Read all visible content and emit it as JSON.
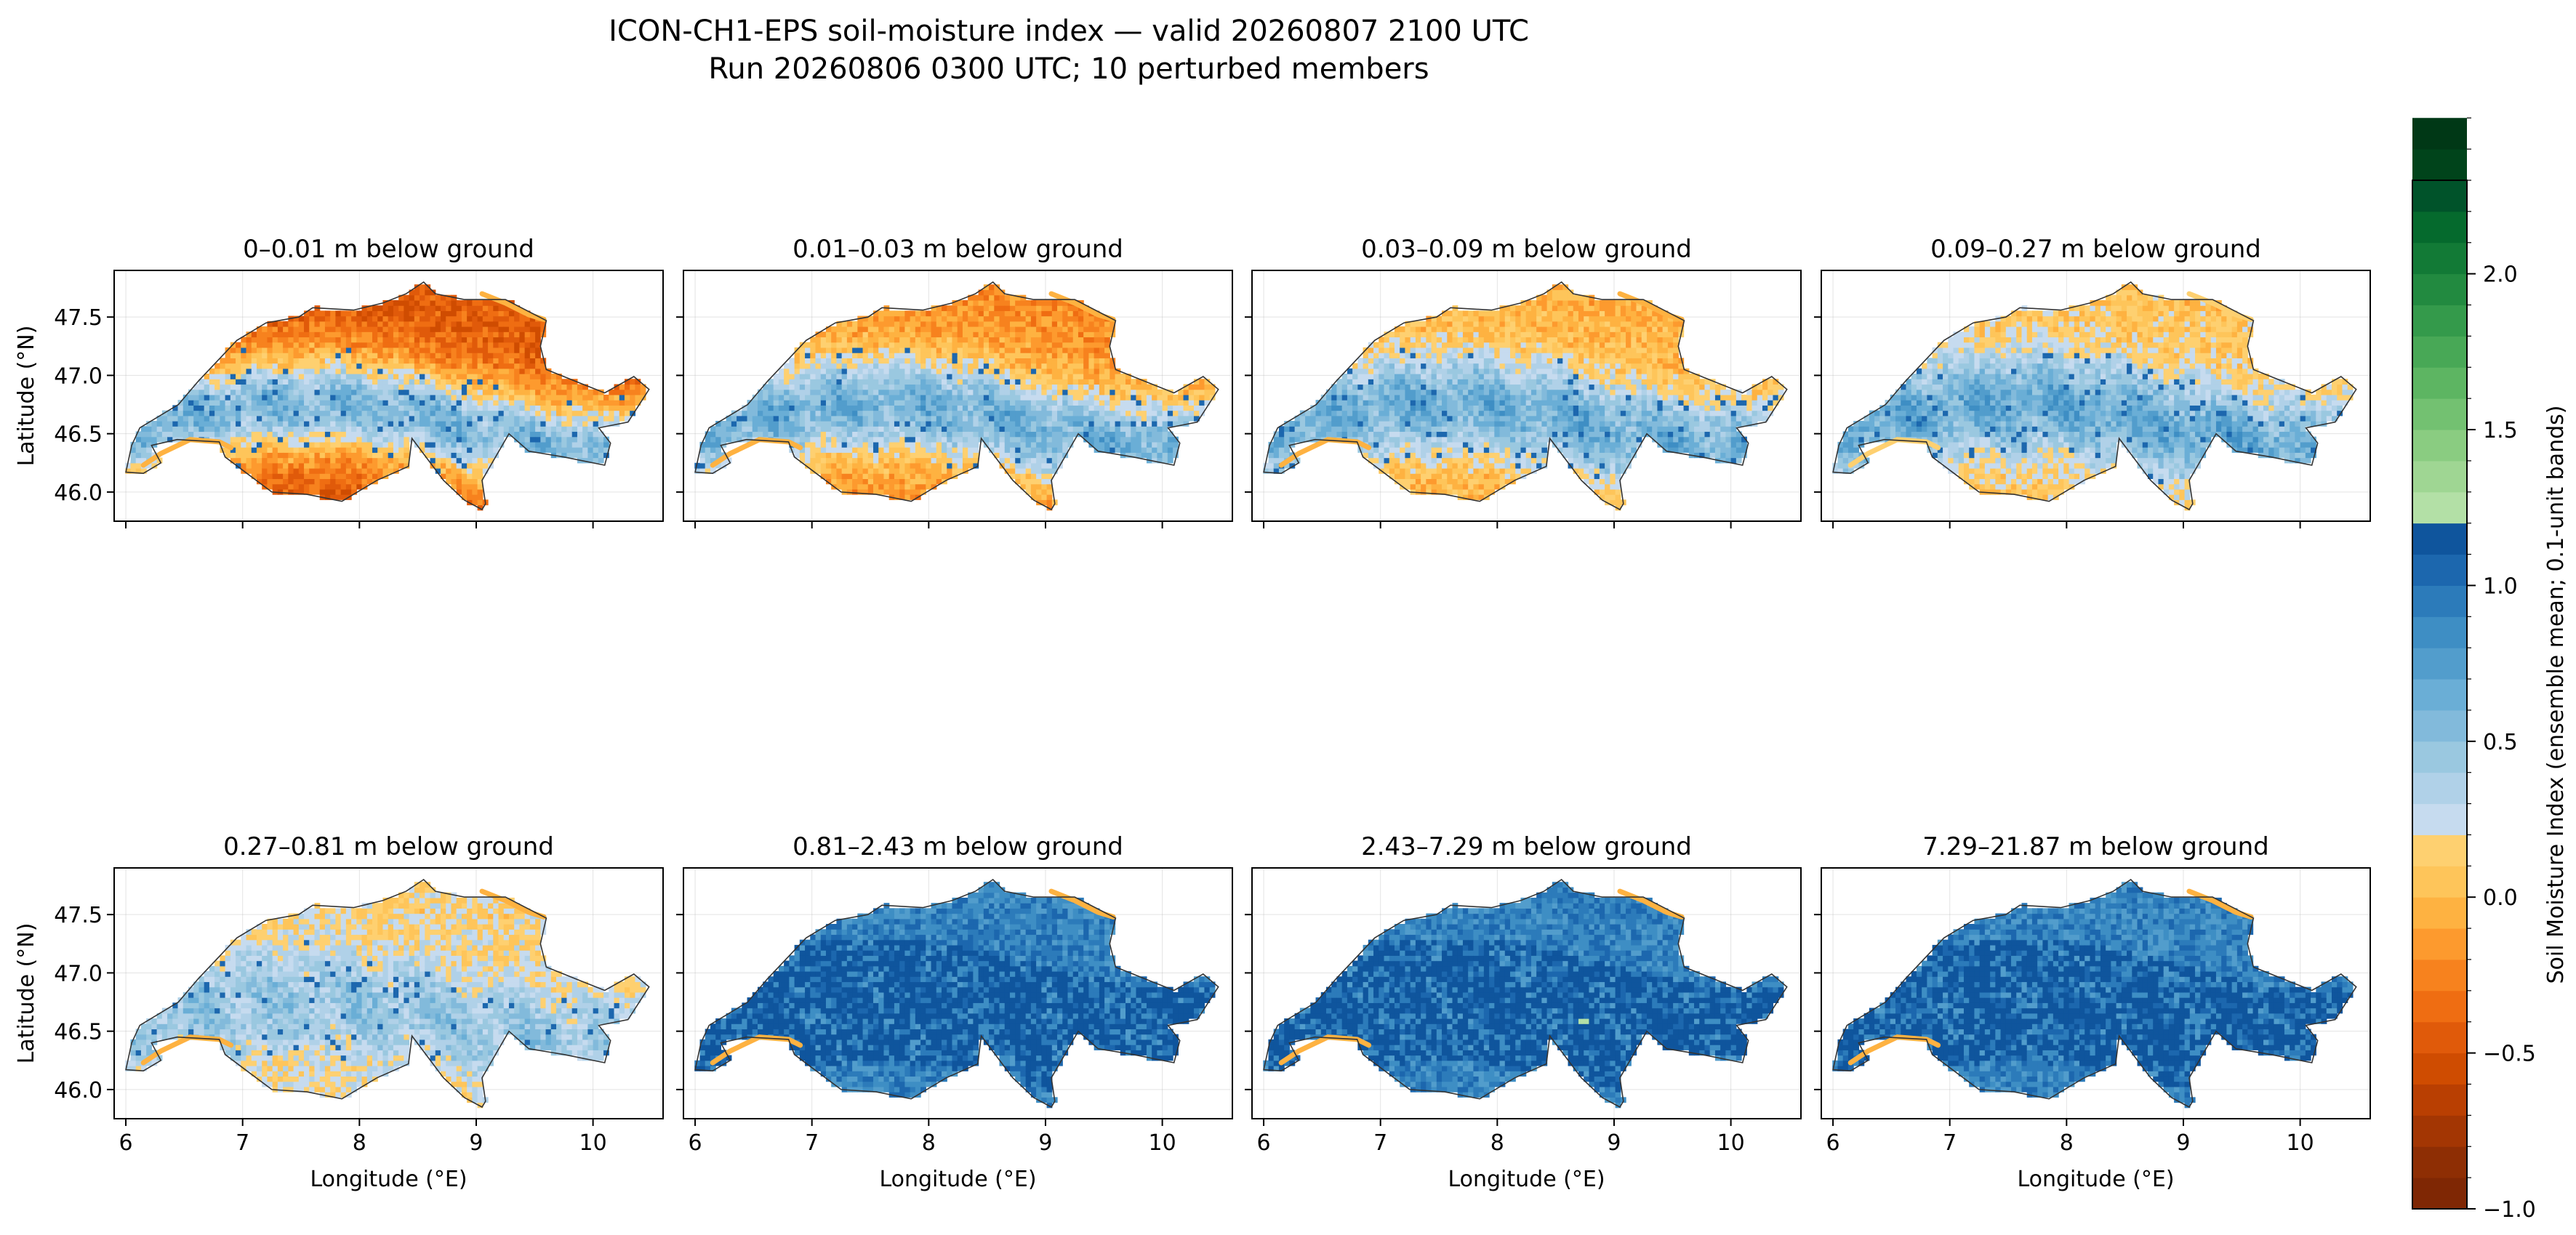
{
  "chart_data": {
    "type": "heatmap",
    "title": "ICON-CH1-EPS soil-moisture index — valid 20260807 2100 UTC",
    "subtitle": "Run 20260806 0300 UTC; 10 perturbed members",
    "xlabel": "Longitude (°E)",
    "ylabel": "Latitude (°N)",
    "xlim": [
      5.9,
      10.6
    ],
    "ylim": [
      45.75,
      47.9
    ],
    "xticks": [
      6,
      7,
      8,
      9,
      10
    ],
    "yticks": [
      46.0,
      46.5,
      47.0,
      47.5
    ],
    "ytick_labels": [
      "46.0",
      "46.5",
      "47.0",
      "47.5"
    ],
    "grid": true,
    "panels": [
      {
        "title": "0–0.01 m below ground",
        "north_mean": -0.45,
        "south_mean": 0.65,
        "lake_rim": -0.1
      },
      {
        "title": "0.01–0.03 m below ground",
        "north_mean": -0.2,
        "south_mean": 0.7,
        "lake_rim": -0.1
      },
      {
        "title": "0.03–0.09 m below ground",
        "north_mean": -0.05,
        "south_mean": 0.72,
        "lake_rim": -0.05
      },
      {
        "title": "0.09–0.27 m below ground",
        "north_mean": 0.05,
        "south_mean": 0.75,
        "lake_rim": 0.1
      },
      {
        "title": "0.27–0.81 m below ground",
        "north_mean": 0.15,
        "south_mean": 0.55,
        "lake_rim": -0.05
      },
      {
        "title": "0.81–2.43 m below ground",
        "north_mean": 0.9,
        "south_mean": 1.05,
        "lake_rim": -0.05
      },
      {
        "title": "2.43–7.29 m below ground",
        "north_mean": 0.9,
        "south_mean": 1.05,
        "lake_rim": -0.05
      },
      {
        "title": "7.29–21.87 m below ground",
        "north_mean": 0.9,
        "south_mean": 1.05,
        "lake_rim": -0.05
      }
    ],
    "colorbar": {
      "label": "Soil Moisture Index (ensemble mean; 0.1-unit bands)",
      "min": -1.0,
      "max": 2.3,
      "step": 0.1,
      "ticks": [
        -1.0,
        -0.5,
        0.0,
        0.5,
        1.0,
        1.5,
        2.0
      ],
      "tick_labels": [
        "−1.0",
        "−0.5",
        "0.0",
        "0.5",
        "1.0",
        "1.5",
        "2.0"
      ],
      "colors": {
        "dry": [
          "#7f2704",
          "#8e2e04",
          "#a33603",
          "#b93f02",
          "#cf4c01",
          "#e05a0a",
          "#ef6d12",
          "#f7821e",
          "#fd9a2e",
          "#feb241",
          "#fec55a",
          "#fed070"
        ],
        "wet": [
          "#c6dbef",
          "#b0d1e8",
          "#9ac8e0",
          "#82badb",
          "#6aaed6",
          "#529dcc",
          "#3e8ec4",
          "#2c7bba",
          "#1c67ae",
          "#0f559d"
        ],
        "very_wet": [
          "#b3e0a6",
          "#9fd693",
          "#8acc81",
          "#73c171",
          "#5db562",
          "#48a856",
          "#349a4b",
          "#228a40",
          "#127a36",
          "#056a2d",
          "#00532a",
          "#00441b",
          "#003816"
        ]
      }
    }
  }
}
